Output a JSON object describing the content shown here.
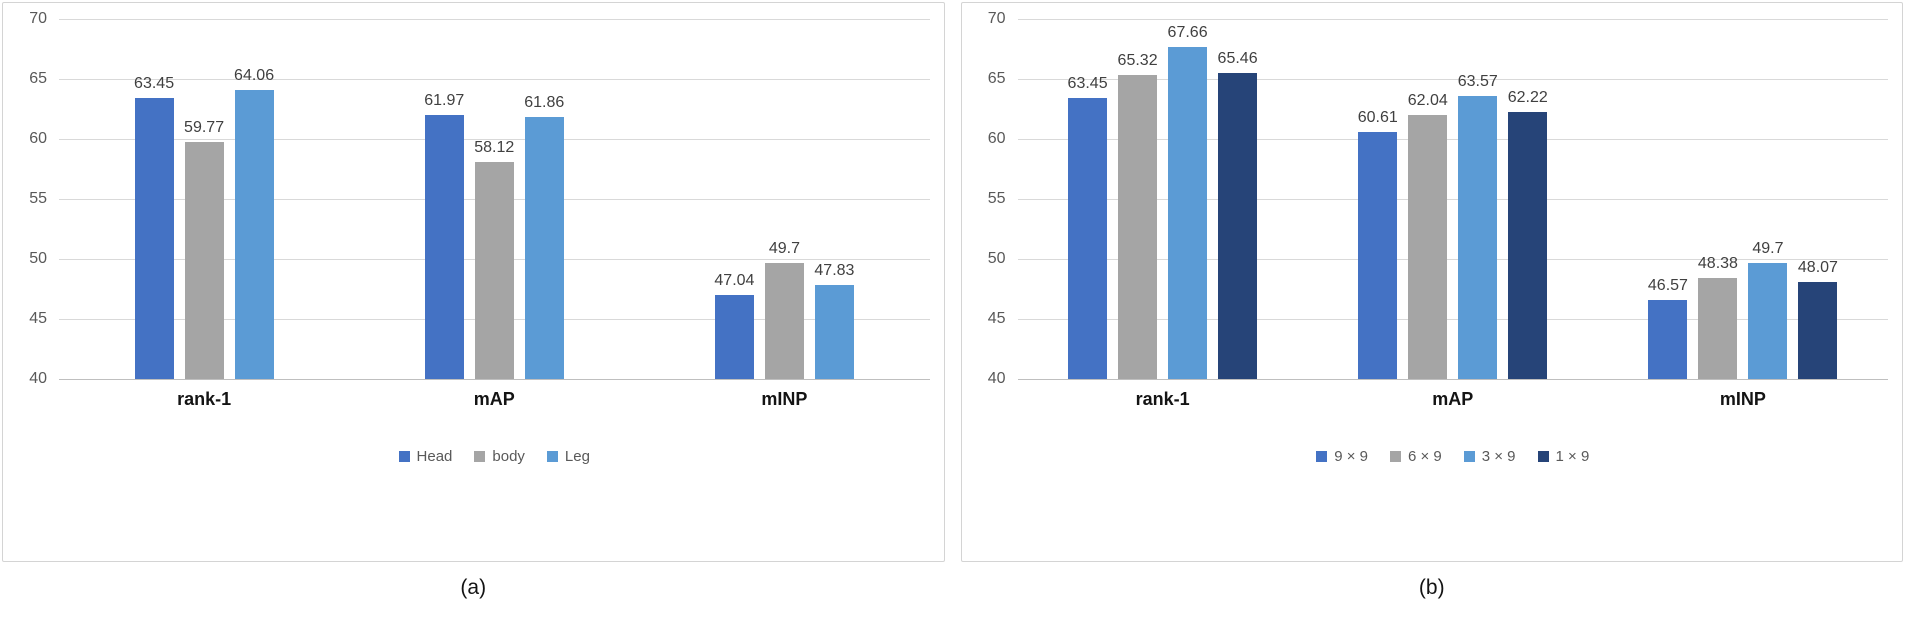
{
  "chart_data": [
    {
      "type": "bar",
      "caption": "(a)",
      "categories": [
        "rank-1",
        "mAP",
        "mINP"
      ],
      "series": [
        {
          "name": "Head",
          "color": "#4472C4",
          "values": [
            63.45,
            61.97,
            47.04
          ]
        },
        {
          "name": "body",
          "color": "#A5A5A5",
          "values": [
            59.77,
            58.12,
            49.7
          ]
        },
        {
          "name": "Leg",
          "color": "#5B9BD5",
          "values": [
            64.06,
            61.86,
            47.83
          ]
        }
      ],
      "ylim": [
        40,
        70
      ],
      "ytick_step": 5,
      "yticks": [
        40,
        45,
        50,
        55,
        60,
        65,
        70
      ],
      "grid": true,
      "legend_position": "bottom",
      "data_labels": true
    },
    {
      "type": "bar",
      "caption": "(b)",
      "categories": [
        "rank-1",
        "mAP",
        "mINP"
      ],
      "series": [
        {
          "name": "9 × 9",
          "color": "#4472C4",
          "values": [
            63.45,
            60.61,
            46.57
          ]
        },
        {
          "name": "6 × 9",
          "color": "#A5A5A5",
          "values": [
            65.32,
            62.04,
            48.38
          ]
        },
        {
          "name": "3 × 9",
          "color": "#5B9BD5",
          "values": [
            67.66,
            63.57,
            49.7
          ]
        },
        {
          "name": "1 × 9",
          "color": "#264478",
          "values": [
            65.46,
            62.22,
            48.07
          ]
        }
      ],
      "ylim": [
        40,
        70
      ],
      "ytick_step": 5,
      "yticks": [
        40,
        45,
        50,
        55,
        60,
        65,
        70
      ],
      "grid": true,
      "legend_position": "bottom",
      "data_labels": true
    }
  ]
}
